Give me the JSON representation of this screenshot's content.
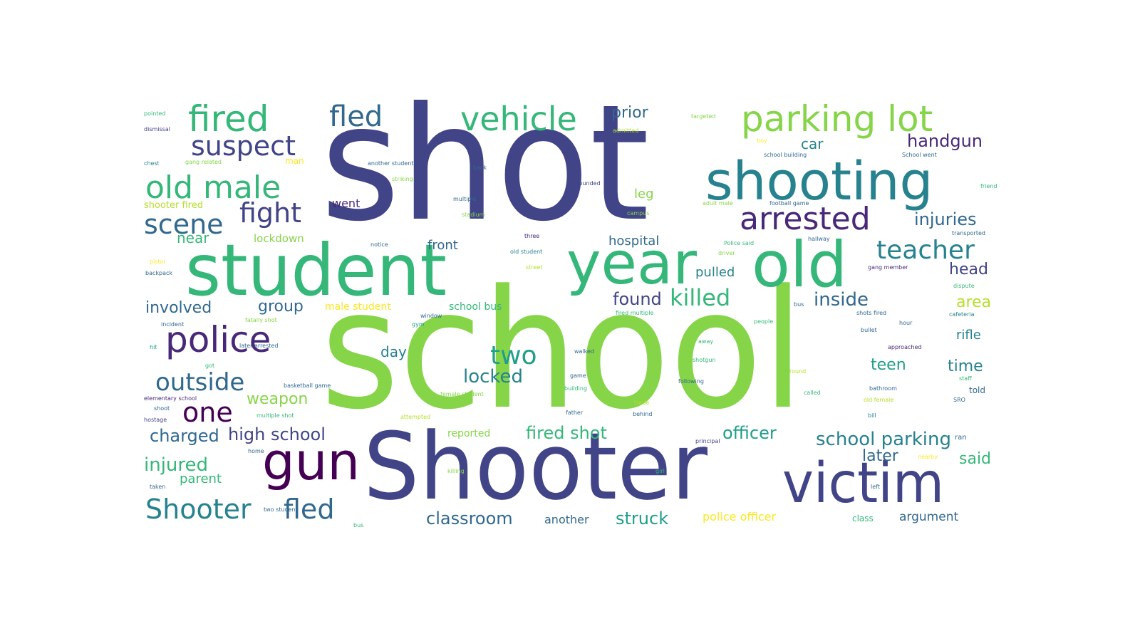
{
  "palette": {
    "dark_purple": "#440154",
    "indigo": "#482878",
    "slate_blue": "#414487",
    "steel_blue": "#3e4a89",
    "blue": "#31688e",
    "teal": "#26828e",
    "teal_green": "#1f9e89",
    "green": "#35b779",
    "lime": "#6ece58",
    "light_lime": "#86d549",
    "yellow_green": "#b5de2b",
    "yellow": "#fde725"
  },
  "words": [
    {
      "text": "school",
      "color": "#86d549"
    },
    {
      "text": "shot",
      "color": "#414487"
    },
    {
      "text": "Shooter",
      "color": "#414487"
    },
    {
      "text": "student",
      "color": "#35b779"
    },
    {
      "text": "year",
      "color": "#35b779"
    },
    {
      "text": "old",
      "color": "#35b779"
    },
    {
      "text": "shooting",
      "color": "#26828e"
    },
    {
      "text": "victim",
      "color": "#414487"
    },
    {
      "text": "gun",
      "color": "#440154"
    },
    {
      "text": "parking lot",
      "color": "#86d549"
    },
    {
      "text": "police",
      "color": "#482878"
    },
    {
      "text": "fired",
      "color": "#35b779"
    },
    {
      "text": "vehicle",
      "color": "#35b779"
    },
    {
      "text": "arrested",
      "color": "#482878"
    },
    {
      "text": "old male",
      "color": "#35b779"
    },
    {
      "text": "fled",
      "color": "#31688e"
    },
    {
      "text": "suspect",
      "color": "#414487"
    },
    {
      "text": "teacher",
      "color": "#26828e"
    },
    {
      "text": "one",
      "color": "#440154"
    },
    {
      "text": "Shooter",
      "color": "#26828e"
    },
    {
      "text": "fled",
      "color": "#31688e"
    },
    {
      "text": "fight",
      "color": "#414487"
    },
    {
      "text": "scene",
      "color": "#31688e"
    },
    {
      "text": "outside",
      "color": "#31688e"
    },
    {
      "text": "two",
      "color": "#1f9e89"
    },
    {
      "text": "killed",
      "color": "#35b779"
    },
    {
      "text": "school parking",
      "color": "#26828e"
    },
    {
      "text": "handgun",
      "color": "#482878"
    },
    {
      "text": "injuries",
      "color": "#31688e"
    },
    {
      "text": "high school",
      "color": "#414487"
    },
    {
      "text": "fired shot",
      "color": "#35b779"
    },
    {
      "text": "officer",
      "color": "#1f9e89"
    },
    {
      "text": "inside",
      "color": "#31688e"
    },
    {
      "text": "head",
      "color": "#414487"
    },
    {
      "text": "found",
      "color": "#414487"
    },
    {
      "text": "locked",
      "color": "#26828e"
    },
    {
      "text": "injured",
      "color": "#35b779"
    },
    {
      "text": "charged",
      "color": "#31688e"
    },
    {
      "text": "classroom",
      "color": "#31688e"
    },
    {
      "text": "struck",
      "color": "#1f9e89"
    },
    {
      "text": "prior",
      "color": "#31688e"
    },
    {
      "text": "car",
      "color": "#26828e"
    },
    {
      "text": "involved",
      "color": "#31688e"
    },
    {
      "text": "group",
      "color": "#31688e"
    },
    {
      "text": "area",
      "color": "#b5de2b"
    },
    {
      "text": "teen",
      "color": "#1f9e89"
    },
    {
      "text": "time",
      "color": "#26828e"
    },
    {
      "text": "later",
      "color": "#31688e"
    },
    {
      "text": "said",
      "color": "#35b779"
    },
    {
      "text": "weapon",
      "color": "#86d549"
    },
    {
      "text": "day",
      "color": "#26828e"
    },
    {
      "text": "pulled",
      "color": "#26828e"
    },
    {
      "text": "hospital",
      "color": "#31688e"
    },
    {
      "text": "near",
      "color": "#35b779"
    },
    {
      "text": "front",
      "color": "#31688e"
    },
    {
      "text": "leg",
      "color": "#86d549"
    },
    {
      "text": "went",
      "color": "#482878"
    },
    {
      "text": "rifle",
      "color": "#26828e"
    },
    {
      "text": "parent",
      "color": "#35b779"
    },
    {
      "text": "another",
      "color": "#31688e"
    },
    {
      "text": "argument",
      "color": "#31688e"
    },
    {
      "text": "police officer",
      "color": "#fde725"
    },
    {
      "text": "male student",
      "color": "#fde725"
    },
    {
      "text": "school bus",
      "color": "#35b779"
    },
    {
      "text": "reported",
      "color": "#86d549"
    },
    {
      "text": "lockdown",
      "color": "#86d549"
    },
    {
      "text": "shooter fired",
      "color": "#b5de2b"
    },
    {
      "text": "class",
      "color": "#35b779"
    },
    {
      "text": "man",
      "color": "#fde725"
    },
    {
      "text": "told",
      "color": "#31688e"
    },
    {
      "text": "ran",
      "color": "#31688e"
    },
    {
      "text": "pointed",
      "color": "#35b779"
    },
    {
      "text": "dismissal",
      "color": "#414487"
    },
    {
      "text": "chest",
      "color": "#26828e"
    },
    {
      "text": "gang related",
      "color": "#86d549"
    },
    {
      "text": "another student",
      "color": "#31688e"
    },
    {
      "text": "striking",
      "color": "#86d549"
    },
    {
      "text": "back",
      "color": "#31688e"
    },
    {
      "text": "multiple",
      "color": "#31688e"
    },
    {
      "text": "wounded",
      "color": "#414487"
    },
    {
      "text": "stadium",
      "color": "#86d549"
    },
    {
      "text": "campus",
      "color": "#86d549"
    },
    {
      "text": "targeted",
      "color": "#86d549"
    },
    {
      "text": "admitted",
      "color": "#b5de2b"
    },
    {
      "text": "boy",
      "color": "#fde725"
    },
    {
      "text": "school building",
      "color": "#31688e"
    },
    {
      "text": "School went",
      "color": "#31688e"
    },
    {
      "text": "friend",
      "color": "#35b779"
    },
    {
      "text": "adult male",
      "color": "#86d549"
    },
    {
      "text": "football game",
      "color": "#31688e"
    },
    {
      "text": "transported",
      "color": "#31688e"
    },
    {
      "text": "Police said",
      "color": "#35b779"
    },
    {
      "text": "hallway",
      "color": "#31688e"
    },
    {
      "text": "notice",
      "color": "#31688e"
    },
    {
      "text": "three",
      "color": "#482878"
    },
    {
      "text": "old student",
      "color": "#26828e"
    },
    {
      "text": "driver",
      "color": "#86d549"
    },
    {
      "text": "street",
      "color": "#b5de2b"
    },
    {
      "text": "pistol",
      "color": "#fde725"
    },
    {
      "text": "backpack",
      "color": "#31688e"
    },
    {
      "text": "gang member",
      "color": "#482878"
    },
    {
      "text": "dispute",
      "color": "#35b779"
    },
    {
      "text": "cafeteria",
      "color": "#26828e"
    },
    {
      "text": "window",
      "color": "#31688e"
    },
    {
      "text": "gym",
      "color": "#1f9e89"
    },
    {
      "text": "fired multiple",
      "color": "#35b779"
    },
    {
      "text": "shots fired",
      "color": "#31688e"
    },
    {
      "text": "bus",
      "color": "#31688e"
    },
    {
      "text": "people",
      "color": "#35b779"
    },
    {
      "text": "hour",
      "color": "#31688e"
    },
    {
      "text": "incident",
      "color": "#31688e"
    },
    {
      "text": "fatally shot",
      "color": "#86d549"
    },
    {
      "text": "bullet",
      "color": "#31688e"
    },
    {
      "text": "approached",
      "color": "#482878"
    },
    {
      "text": "away",
      "color": "#35b779"
    },
    {
      "text": "walked",
      "color": "#31688e"
    },
    {
      "text": "hit",
      "color": "#1f9e89"
    },
    {
      "text": "later arrested",
      "color": "#31688e"
    },
    {
      "text": "got",
      "color": "#35b779"
    },
    {
      "text": "shotgun",
      "color": "#35b779"
    },
    {
      "text": "game",
      "color": "#31688e"
    },
    {
      "text": "following",
      "color": "#31688e"
    },
    {
      "text": "round",
      "color": "#b5de2b"
    },
    {
      "text": "basketball game",
      "color": "#31688e"
    },
    {
      "text": "building",
      "color": "#35b779"
    },
    {
      "text": "staff",
      "color": "#35b779"
    },
    {
      "text": "elementary school",
      "color": "#482878"
    },
    {
      "text": "female student",
      "color": "#86d549"
    },
    {
      "text": "called",
      "color": "#35b779"
    },
    {
      "text": "bathroom",
      "color": "#31688e"
    },
    {
      "text": "SRO",
      "color": "#31688e"
    },
    {
      "text": "shoot",
      "color": "#31688e"
    },
    {
      "text": "trade",
      "color": "#b5de2b"
    },
    {
      "text": "old female",
      "color": "#b5de2b"
    },
    {
      "text": "hostage",
      "color": "#414487"
    },
    {
      "text": "multiple shot",
      "color": "#35b779"
    },
    {
      "text": "attempted",
      "color": "#b5de2b"
    },
    {
      "text": "father",
      "color": "#31688e"
    },
    {
      "text": "behind",
      "color": "#31688e"
    },
    {
      "text": "bill",
      "color": "#26828e"
    },
    {
      "text": "principal",
      "color": "#414487"
    },
    {
      "text": "home",
      "color": "#31688e"
    },
    {
      "text": "nearby",
      "color": "#fde725"
    },
    {
      "text": "girl",
      "color": "#35b779"
    },
    {
      "text": "killing",
      "color": "#86d549"
    },
    {
      "text": "taken",
      "color": "#31688e"
    },
    {
      "text": "left",
      "color": "#31688e"
    },
    {
      "text": "two student",
      "color": "#31688e"
    },
    {
      "text": "bus",
      "color": "#35b779"
    }
  ]
}
